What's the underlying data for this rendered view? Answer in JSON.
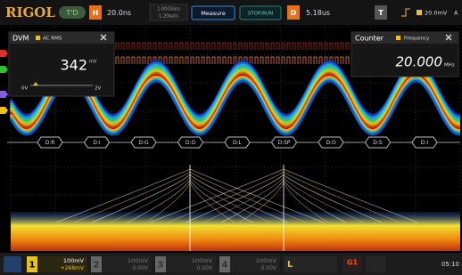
{
  "top_bar": {
    "brand": "RIGOL",
    "mode_badge": "T'D",
    "horizontal": {
      "label": "H",
      "value": "20.0ns"
    },
    "sample_info": [
      "1.00GSa/s",
      "1.20kpts"
    ],
    "measure_button": "Measure",
    "run_state": "STOP/RUN",
    "delay": {
      "label": "D",
      "value": "5.18us"
    },
    "trigger": {
      "label": "T",
      "level": "20.0mV",
      "source": "A"
    }
  },
  "dvm": {
    "title": "DVM",
    "mode": "AC RMS",
    "reading": "342",
    "unit": "mV",
    "scale_min": "0V",
    "scale_max": "2V"
  },
  "counter": {
    "title": "Counter",
    "mode": "Frequency",
    "reading": "20.000",
    "unit": "MHz"
  },
  "bus_labels": [
    "D:R",
    "D:I",
    "D:G",
    "D:O",
    "D:L",
    "D:SP",
    "D:O",
    "D:S",
    "D:I"
  ],
  "channels": [
    {
      "number": "1",
      "scale": "100mV",
      "offset": "+268mV"
    },
    {
      "number": "2",
      "scale": "100mV",
      "offset": "0.00V"
    },
    {
      "number": "3",
      "scale": "100mV",
      "offset": "0.00V"
    },
    {
      "number": "4",
      "scale": "100mV",
      "offset": "0.00V"
    }
  ],
  "logic": "L",
  "generator": "G1",
  "clock": "05:10"
}
